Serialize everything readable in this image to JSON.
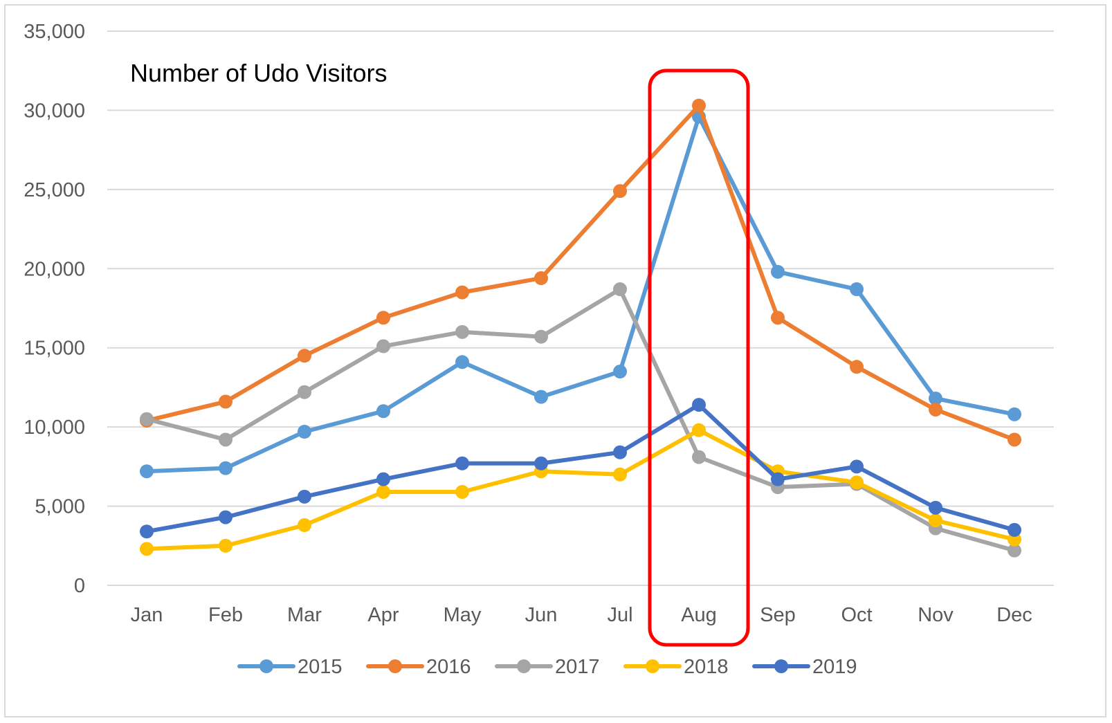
{
  "chart_data": {
    "type": "line",
    "title": "Number of Udo Visitors",
    "xlabel": "",
    "ylabel": "",
    "categories": [
      "Jan",
      "Feb",
      "Mar",
      "Apr",
      "May",
      "Jun",
      "Jul",
      "Aug",
      "Sep",
      "Oct",
      "Nov",
      "Dec"
    ],
    "ylim": [
      0,
      35000
    ],
    "yticks": [
      "0",
      "5,000",
      "10,000",
      "15,000",
      "20,000",
      "25,000",
      "30,000",
      "35,000"
    ],
    "ytick_values": [
      0,
      5000,
      10000,
      15000,
      20000,
      25000,
      30000,
      35000
    ],
    "grid": true,
    "legend_position": "bottom",
    "highlight": {
      "category": "Aug",
      "color": "#ff0000"
    },
    "series": [
      {
        "name": "2015",
        "color": "#5b9bd5",
        "values": [
          7200,
          7400,
          9700,
          11000,
          14100,
          11900,
          13500,
          29600,
          19800,
          18700,
          11800,
          10800
        ]
      },
      {
        "name": "2016",
        "color": "#ed7d31",
        "values": [
          10400,
          11600,
          14500,
          16900,
          18500,
          19400,
          24900,
          30300,
          16900,
          13800,
          11100,
          9200
        ]
      },
      {
        "name": "2017",
        "color": "#a5a5a5",
        "values": [
          10500,
          9200,
          12200,
          15100,
          16000,
          15700,
          18700,
          8100,
          6200,
          6400,
          3600,
          2200
        ]
      },
      {
        "name": "2018",
        "color": "#ffc000",
        "values": [
          2300,
          2500,
          3800,
          5900,
          5900,
          7200,
          7000,
          9800,
          7200,
          6500,
          4100,
          2900
        ]
      },
      {
        "name": "2019",
        "color": "#4472c4",
        "values": [
          3400,
          4300,
          5600,
          6700,
          7700,
          7700,
          8400,
          11400,
          6700,
          7500,
          4900,
          3500
        ]
      }
    ]
  }
}
